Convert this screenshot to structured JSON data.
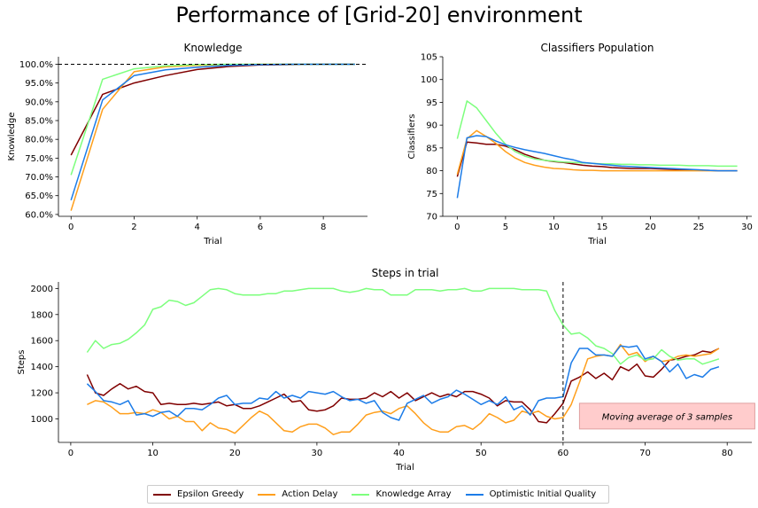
{
  "figure": {
    "title": "Performance of [Grid-20] environment",
    "colors": {
      "Epsilon Greedy": "#800000",
      "Action Delay": "#ff9f1c",
      "Knowledge Array": "#7dff7d",
      "Optimistic Initial Quality": "#1c7ce8"
    },
    "legend": [
      "Epsilon Greedy",
      "Action Delay",
      "Knowledge Array",
      "Optimistic Initial Quality"
    ],
    "legend_position": "bottom-center"
  },
  "chart_data": [
    {
      "type": "line",
      "title": "Knowledge",
      "xlabel": "Trial",
      "ylabel": "Knowledge",
      "xlim": [
        -0.4,
        9.4
      ],
      "ylim": [
        59.5,
        102
      ],
      "xticks": [
        0,
        2,
        4,
        6,
        8
      ],
      "yticks": [
        60,
        65,
        70,
        75,
        80,
        85,
        90,
        95,
        100
      ],
      "ytick_labels": [
        "60.0%",
        "65.0%",
        "70.0%",
        "75.0%",
        "80.0%",
        "85.0%",
        "90.0%",
        "95.0%",
        "100.0%"
      ],
      "reference_line": {
        "axis": "y",
        "value": 100,
        "style": "dashed"
      },
      "x": [
        0,
        1,
        2,
        3,
        4,
        5,
        6,
        7,
        8,
        9
      ],
      "series": [
        {
          "name": "Epsilon Greedy",
          "values": [
            75.8,
            92.0,
            95.0,
            97.0,
            98.6,
            99.4,
            99.8,
            99.9,
            100.0,
            100.0
          ]
        },
        {
          "name": "Action Delay",
          "values": [
            61.0,
            88.0,
            98.0,
            99.3,
            99.7,
            99.9,
            100.0,
            100.0,
            100.0,
            100.0
          ]
        },
        {
          "name": "Knowledge Array",
          "values": [
            70.5,
            96.0,
            98.8,
            99.6,
            99.9,
            100.0,
            100.0,
            100.0,
            100.0,
            100.0
          ]
        },
        {
          "name": "Optimistic Initial Quality",
          "values": [
            63.8,
            90.5,
            97.0,
            98.5,
            99.2,
            99.7,
            99.9,
            100.0,
            100.0,
            100.0
          ]
        }
      ]
    },
    {
      "type": "line",
      "title": "Classifiers Population",
      "xlabel": "Trial",
      "ylabel": "Classifiers",
      "xlim": [
        -1.5,
        30.5
      ],
      "ylim": [
        70,
        105
      ],
      "xticks": [
        0,
        5,
        10,
        15,
        20,
        25,
        30
      ],
      "yticks": [
        70,
        75,
        80,
        85,
        90,
        95,
        100,
        105
      ],
      "x": [
        0,
        1,
        2,
        3,
        4,
        5,
        6,
        7,
        8,
        9,
        10,
        11,
        12,
        13,
        14,
        15,
        16,
        17,
        18,
        19,
        20,
        21,
        22,
        23,
        24,
        25,
        26,
        27,
        28,
        29
      ],
      "series": [
        {
          "name": "Epsilon Greedy",
          "values": [
            78.7,
            86.3,
            86.1,
            85.8,
            85.8,
            85.4,
            84.6,
            83.6,
            82.9,
            82.3,
            82.0,
            81.8,
            81.5,
            81.2,
            81.0,
            80.9,
            80.7,
            80.6,
            80.5,
            80.5,
            80.5,
            80.4,
            80.3,
            80.2,
            80.2,
            80.1,
            80.1,
            80.0,
            80.0,
            80.0
          ]
        },
        {
          "name": "Action Delay",
          "values": [
            79.2,
            87.0,
            88.8,
            87.5,
            86.0,
            84.2,
            82.8,
            81.8,
            81.2,
            80.8,
            80.5,
            80.4,
            80.2,
            80.1,
            80.1,
            80.0,
            80.0,
            80.0,
            80.0,
            80.0,
            80.0,
            80.0,
            80.0,
            80.0,
            80.0,
            80.0,
            80.0,
            80.0,
            80.0,
            80.0
          ]
        },
        {
          "name": "Knowledge Array",
          "values": [
            87.0,
            95.3,
            93.8,
            91.0,
            88.2,
            85.8,
            84.2,
            83.2,
            82.6,
            82.3,
            82.1,
            81.9,
            81.8,
            81.7,
            81.6,
            81.5,
            81.5,
            81.4,
            81.4,
            81.3,
            81.3,
            81.2,
            81.2,
            81.2,
            81.1,
            81.1,
            81.1,
            81.0,
            81.0,
            81.0
          ]
        },
        {
          "name": "Optimistic Initial Quality",
          "values": [
            74.0,
            87.2,
            87.7,
            87.5,
            86.5,
            85.7,
            85.1,
            84.6,
            84.2,
            83.8,
            83.3,
            82.8,
            82.4,
            81.8,
            81.6,
            81.4,
            81.2,
            81.0,
            80.9,
            80.8,
            80.7,
            80.6,
            80.5,
            80.4,
            80.3,
            80.2,
            80.1,
            80.0,
            80.0,
            80.0
          ]
        }
      ]
    },
    {
      "type": "line",
      "title": "Steps in trial",
      "xlabel": "Trial",
      "ylabel": "Steps",
      "xlim": [
        -1.5,
        83
      ],
      "ylim": [
        820,
        2050
      ],
      "xticks": [
        0,
        10,
        20,
        30,
        40,
        50,
        60,
        70,
        80
      ],
      "yticks": [
        1000,
        1200,
        1400,
        1600,
        1800,
        2000
      ],
      "reference_line": {
        "axis": "x",
        "value": 60,
        "style": "dashed"
      },
      "annotation": {
        "text": "Moving average of 3 samples",
        "background": "#ffcccc",
        "edge": "#e0a0a0",
        "x_data": 62,
        "y_data": 1120
      },
      "x": [
        2,
        3,
        4,
        5,
        6,
        7,
        8,
        9,
        10,
        11,
        12,
        13,
        14,
        15,
        16,
        17,
        18,
        19,
        20,
        21,
        22,
        23,
        24,
        25,
        26,
        27,
        28,
        29,
        30,
        31,
        32,
        33,
        34,
        35,
        36,
        37,
        38,
        39,
        40,
        41,
        42,
        43,
        44,
        45,
        46,
        47,
        48,
        49,
        50,
        51,
        52,
        53,
        54,
        55,
        56,
        57,
        58,
        59,
        60,
        61,
        62,
        63,
        64,
        65,
        66,
        67,
        68,
        69,
        70,
        71,
        72,
        73,
        74,
        75,
        76,
        77,
        78,
        79
      ],
      "series": [
        {
          "name": "Epsilon Greedy",
          "values": [
            1340,
            1200,
            1180,
            1230,
            1270,
            1230,
            1250,
            1210,
            1200,
            1110,
            1120,
            1110,
            1110,
            1120,
            1110,
            1120,
            1130,
            1100,
            1110,
            1080,
            1080,
            1100,
            1130,
            1160,
            1190,
            1130,
            1140,
            1070,
            1060,
            1070,
            1100,
            1160,
            1150,
            1150,
            1160,
            1200,
            1170,
            1210,
            1160,
            1200,
            1140,
            1170,
            1200,
            1170,
            1190,
            1170,
            1210,
            1210,
            1190,
            1160,
            1100,
            1140,
            1130,
            1130,
            1070,
            980,
            970,
            1040,
            1120,
            1290,
            1320,
            1360,
            1310,
            1350,
            1300,
            1400,
            1370,
            1420,
            1330,
            1320,
            1380,
            1450,
            1460,
            1480,
            1490,
            1520,
            1510,
            1540
          ]
        },
        {
          "name": "Action Delay",
          "values": [
            1110,
            1140,
            1130,
            1090,
            1040,
            1040,
            1050,
            1040,
            1070,
            1050,
            1000,
            1020,
            980,
            980,
            910,
            970,
            930,
            920,
            890,
            950,
            1010,
            1060,
            1030,
            970,
            910,
            900,
            940,
            960,
            960,
            930,
            880,
            900,
            900,
            960,
            1030,
            1050,
            1060,
            1040,
            1080,
            1100,
            1040,
            970,
            920,
            900,
            900,
            940,
            950,
            920,
            970,
            1040,
            1010,
            970,
            990,
            1060,
            1040,
            1060,
            1020,
            1000,
            1010,
            1110,
            1280,
            1460,
            1480,
            1490,
            1480,
            1570,
            1490,
            1510,
            1440,
            1480,
            1440,
            1450,
            1480,
            1490,
            1480,
            1490,
            1500,
            1540
          ]
        },
        {
          "name": "Knowledge Array",
          "values": [
            1510,
            1600,
            1540,
            1570,
            1580,
            1610,
            1660,
            1720,
            1840,
            1860,
            1910,
            1900,
            1870,
            1890,
            1940,
            1990,
            2000,
            1990,
            1960,
            1950,
            1950,
            1950,
            1960,
            1960,
            1980,
            1980,
            1990,
            2000,
            2000,
            2000,
            2000,
            1980,
            1970,
            1980,
            2000,
            1990,
            1990,
            1950,
            1950,
            1950,
            1990,
            1990,
            1990,
            1980,
            1990,
            1990,
            2000,
            1980,
            1980,
            2000,
            2000,
            2000,
            2000,
            1990,
            1990,
            1990,
            1980,
            1830,
            1720,
            1650,
            1660,
            1620,
            1560,
            1540,
            1500,
            1420,
            1470,
            1490,
            1450,
            1460,
            1530,
            1480,
            1450,
            1460,
            1460,
            1420,
            1440,
            1460
          ]
        },
        {
          "name": "Optimistic Initial Quality",
          "values": [
            1270,
            1210,
            1140,
            1130,
            1110,
            1140,
            1030,
            1040,
            1020,
            1050,
            1060,
            1020,
            1080,
            1080,
            1070,
            1110,
            1160,
            1180,
            1110,
            1120,
            1120,
            1160,
            1150,
            1210,
            1160,
            1180,
            1160,
            1210,
            1200,
            1190,
            1210,
            1170,
            1140,
            1150,
            1120,
            1140,
            1050,
            1010,
            990,
            1120,
            1150,
            1180,
            1120,
            1150,
            1170,
            1220,
            1190,
            1150,
            1110,
            1140,
            1110,
            1170,
            1070,
            1100,
            1030,
            1140,
            1160,
            1160,
            1170,
            1430,
            1540,
            1540,
            1490,
            1490,
            1480,
            1560,
            1550,
            1560,
            1460,
            1480,
            1440,
            1360,
            1420,
            1310,
            1340,
            1320,
            1380,
            1400
          ]
        }
      ]
    }
  ]
}
